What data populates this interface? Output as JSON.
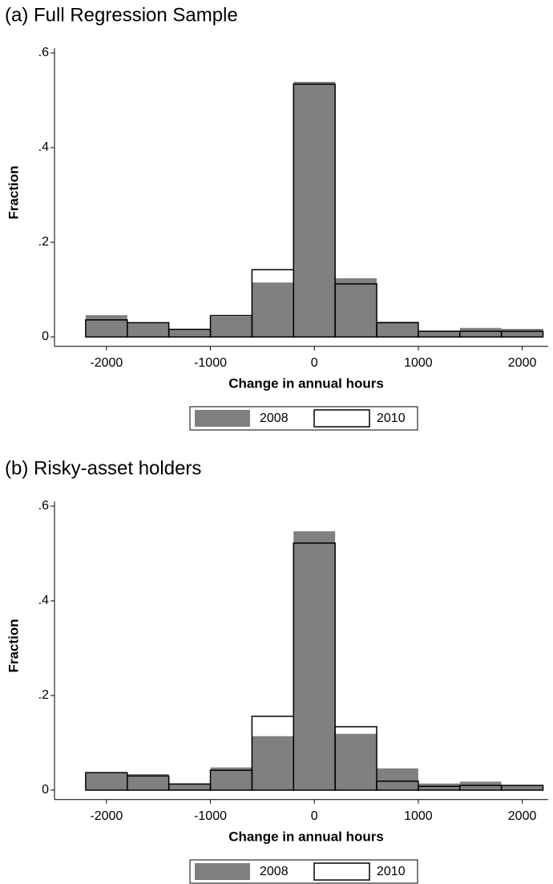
{
  "chart_data": [
    {
      "type": "histogram",
      "title": "(a)  Full Regression Sample",
      "x_label": "Change in annual hours",
      "y_label": "Fraction",
      "bins": [
        -2200,
        -1800,
        -1400,
        -1000,
        -600,
        -200,
        200,
        600,
        1000,
        1400,
        1800,
        2200
      ],
      "series": [
        {
          "name": "2008",
          "color": "#808080",
          "values": [
            0.046,
            0.03,
            0.016,
            0.043,
            0.115,
            0.539,
            0.124,
            0.032,
            0.012,
            0.019,
            0.017
          ]
        },
        {
          "name": "2010",
          "color": "#000000",
          "values": [
            0.036,
            0.03,
            0.016,
            0.045,
            0.142,
            0.534,
            0.112,
            0.03,
            0.012,
            0.012,
            0.012
          ]
        }
      ],
      "xlim": [
        -2500,
        2250
      ],
      "xticks": [
        -2000,
        -1000,
        0,
        1000,
        2000
      ],
      "ylim": [
        -0.02,
        0.61
      ],
      "yticks": [
        0,
        {
          "value": 0.2,
          "label": ".2"
        },
        {
          "value": 0.4,
          "label": ".4"
        },
        {
          "value": 0.6,
          "label": ".6"
        }
      ]
    },
    {
      "type": "histogram",
      "title": "(b)  Risky-asset holders",
      "x_label": "Change in annual hours",
      "y_label": "Fraction",
      "bins": [
        -2200,
        -1800,
        -1400,
        -1000,
        -600,
        -200,
        200,
        600,
        1000,
        1400,
        1800,
        2200
      ],
      "series": [
        {
          "name": "2008",
          "color": "#808080",
          "values": [
            0.037,
            0.034,
            0.013,
            0.048,
            0.114,
            0.547,
            0.119,
            0.046,
            0.014,
            0.018,
            0.01
          ]
        },
        {
          "name": "2010",
          "color": "#000000",
          "values": [
            0.037,
            0.03,
            0.013,
            0.042,
            0.156,
            0.522,
            0.134,
            0.019,
            0.008,
            0.01,
            0.01
          ]
        }
      ],
      "xlim": [
        -2500,
        2250
      ],
      "xticks": [
        -2000,
        -1000,
        0,
        1000,
        2000
      ],
      "ylim": [
        -0.02,
        0.61
      ],
      "yticks": [
        0,
        {
          "value": 0.2,
          "label": ".2"
        },
        {
          "value": 0.4,
          "label": ".4"
        },
        {
          "value": 0.6,
          "label": ".6"
        }
      ]
    }
  ]
}
